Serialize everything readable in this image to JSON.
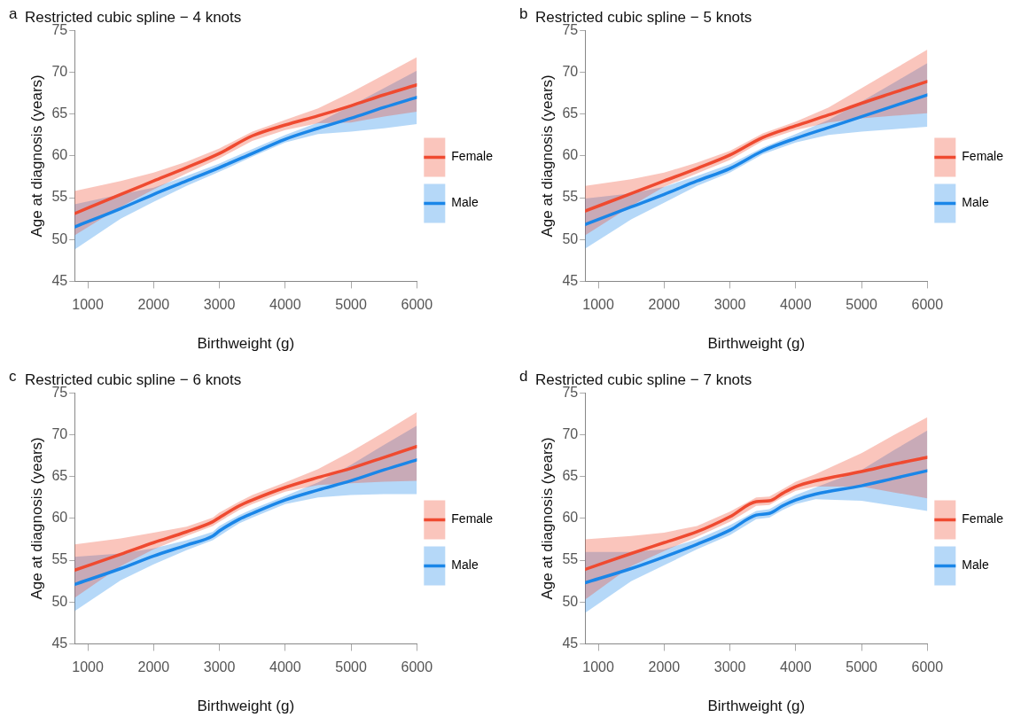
{
  "chart_data": [
    {
      "type": "line",
      "title": "Restricted cubic spline − 4 knots",
      "annotations": [
        "a"
      ],
      "xlabel": "Birthweight (g)",
      "ylabel": "Age at diagnosis (years)",
      "x": [
        800,
        1500,
        2000,
        2500,
        3000,
        3500,
        4000,
        4500,
        5000,
        5500,
        6000
      ],
      "xlim": [
        800,
        6000
      ],
      "xticks": [
        1000,
        2000,
        3000,
        4000,
        5000,
        6000
      ],
      "ylim": [
        45,
        75
      ],
      "yticks": [
        45,
        50,
        55,
        60,
        65,
        70,
        75
      ],
      "grid": false,
      "legend": "right",
      "series": [
        {
          "name": "Female",
          "color": "#ef4a30",
          "values": [
            53.1,
            55.4,
            57.0,
            58.6,
            60.3,
            62.4,
            63.7,
            64.8,
            66.0,
            67.3,
            68.5
          ],
          "lower": [
            50.5,
            53.9,
            56.0,
            57.9,
            59.7,
            61.8,
            63.1,
            63.9,
            64.0,
            64.7,
            65.3
          ],
          "upper": [
            55.8,
            57.0,
            58.0,
            59.3,
            60.9,
            62.9,
            64.3,
            65.7,
            67.6,
            69.7,
            71.8
          ]
        },
        {
          "name": "Male",
          "color": "#1a86e8",
          "values": [
            51.5,
            53.7,
            55.4,
            57.0,
            58.6,
            60.3,
            62.0,
            63.3,
            64.5,
            65.8,
            67.0
          ],
          "lower": [
            48.8,
            52.5,
            54.5,
            56.4,
            58.1,
            59.9,
            61.6,
            62.6,
            62.9,
            63.3,
            63.8
          ],
          "upper": [
            54.2,
            55.4,
            56.2,
            57.6,
            59.1,
            60.8,
            62.5,
            64.0,
            66.0,
            68.1,
            70.2
          ]
        }
      ]
    },
    {
      "type": "line",
      "title": "Restricted cubic spline − 5 knots",
      "annotations": [
        "b"
      ],
      "xlabel": "Birthweight (g)",
      "ylabel": "Age at diagnosis (years)",
      "x": [
        800,
        1500,
        2000,
        2500,
        3000,
        3500,
        4000,
        4500,
        5000,
        5500,
        6000
      ],
      "xlim": [
        800,
        6000
      ],
      "xticks": [
        1000,
        2000,
        3000,
        4000,
        5000,
        6000
      ],
      "ylim": [
        45,
        75
      ],
      "yticks": [
        45,
        50,
        55,
        60,
        65,
        70,
        75
      ],
      "grid": false,
      "legend": "right",
      "series": [
        {
          "name": "Female",
          "color": "#ef4a30",
          "values": [
            53.4,
            55.5,
            57.0,
            58.5,
            60.1,
            62.2,
            63.6,
            64.9,
            66.3,
            67.6,
            68.9
          ],
          "lower": [
            50.5,
            54.0,
            56.3,
            57.9,
            59.5,
            61.8,
            63.1,
            64.0,
            64.5,
            64.8,
            65.1
          ],
          "upper": [
            56.4,
            57.2,
            58.0,
            59.2,
            60.6,
            62.7,
            64.1,
            65.8,
            68.1,
            70.4,
            72.7
          ]
        },
        {
          "name": "Male",
          "color": "#1a86e8",
          "values": [
            51.8,
            53.9,
            55.4,
            57.0,
            58.5,
            60.6,
            62.1,
            63.4,
            64.7,
            66.0,
            67.3
          ],
          "lower": [
            48.9,
            52.4,
            54.4,
            56.4,
            58.0,
            60.2,
            61.6,
            62.5,
            62.9,
            63.2,
            63.5
          ],
          "upper": [
            54.9,
            55.5,
            56.3,
            57.6,
            59.0,
            61.0,
            62.6,
            64.3,
            66.5,
            68.8,
            71.1
          ]
        }
      ]
    },
    {
      "type": "line",
      "title": "Restricted cubic spline − 6 knots",
      "annotations": [
        "c"
      ],
      "xlabel": "Birthweight (g)",
      "ylabel": "Age at diagnosis (years)",
      "x": [
        800,
        1500,
        2000,
        2500,
        2900,
        3000,
        3300,
        3500,
        4000,
        4500,
        5000,
        5500,
        6000
      ],
      "xlim": [
        800,
        6000
      ],
      "xticks": [
        1000,
        2000,
        3000,
        4000,
        5000,
        6000
      ],
      "ylim": [
        45,
        75
      ],
      "yticks": [
        45,
        50,
        55,
        60,
        65,
        70,
        75
      ],
      "grid": false,
      "legend": "right",
      "series": [
        {
          "name": "Female",
          "color": "#ef4a30",
          "values": [
            53.8,
            55.7,
            57.1,
            58.4,
            59.6,
            60.1,
            61.5,
            62.2,
            63.7,
            64.9,
            66.0,
            67.3,
            68.6
          ],
          "lower": [
            50.5,
            54.3,
            56.3,
            57.9,
            59.1,
            59.6,
            61.0,
            61.7,
            63.2,
            64.0,
            64.2,
            64.4,
            64.5
          ],
          "upper": [
            56.9,
            57.6,
            58.3,
            59.0,
            60.1,
            60.7,
            62.0,
            62.8,
            64.3,
            65.9,
            68.0,
            70.3,
            72.7
          ]
        },
        {
          "name": "Male",
          "color": "#1a86e8",
          "values": [
            52.1,
            54.0,
            55.5,
            56.8,
            57.9,
            58.5,
            59.9,
            60.6,
            62.2,
            63.4,
            64.5,
            65.8,
            67.0
          ],
          "lower": [
            48.9,
            52.6,
            54.5,
            56.2,
            57.4,
            57.9,
            59.4,
            60.1,
            61.7,
            62.5,
            62.8,
            62.9,
            62.9
          ],
          "upper": [
            55.4,
            55.8,
            56.4,
            57.4,
            58.4,
            59.1,
            60.4,
            61.1,
            62.7,
            64.3,
            66.4,
            68.8,
            71.1
          ]
        }
      ]
    },
    {
      "type": "line",
      "title": "Restricted cubic spline − 7 knots",
      "annotations": [
        "d"
      ],
      "xlabel": "Birthweight (g)",
      "ylabel": "Age at diagnosis (years)",
      "x": [
        800,
        1500,
        2000,
        2500,
        3000,
        3400,
        3600,
        3800,
        4000,
        4300,
        5000,
        5500,
        6000
      ],
      "xlim": [
        800,
        6000
      ],
      "xticks": [
        1000,
        2000,
        3000,
        4000,
        5000,
        6000
      ],
      "ylim": [
        45,
        75
      ],
      "yticks": [
        45,
        50,
        55,
        60,
        65,
        70,
        75
      ],
      "grid": false,
      "legend": "right",
      "series": [
        {
          "name": "Female",
          "color": "#ef4a30",
          "values": [
            53.9,
            55.8,
            57.1,
            58.4,
            60.2,
            62.0,
            62.1,
            63.0,
            63.8,
            64.5,
            65.6,
            66.5,
            67.3
          ],
          "lower": [
            50.3,
            54.3,
            56.1,
            57.8,
            59.6,
            61.5,
            61.6,
            62.5,
            63.3,
            63.8,
            63.8,
            63.1,
            62.4
          ],
          "upper": [
            57.5,
            57.9,
            58.3,
            59.1,
            60.8,
            62.5,
            62.6,
            63.5,
            64.4,
            65.3,
            67.8,
            70.0,
            72.1
          ]
        },
        {
          "name": "Male",
          "color": "#1a86e8",
          "values": [
            52.3,
            54.0,
            55.4,
            56.9,
            58.6,
            60.4,
            60.6,
            61.5,
            62.2,
            62.9,
            63.9,
            64.8,
            65.7
          ],
          "lower": [
            48.7,
            52.5,
            54.4,
            56.3,
            58.0,
            59.9,
            60.1,
            61.0,
            61.7,
            62.3,
            62.1,
            61.5,
            60.9
          ],
          "upper": [
            56.0,
            56.0,
            56.3,
            57.5,
            59.2,
            60.9,
            61.1,
            62.0,
            62.8,
            63.7,
            65.8,
            68.2,
            70.5
          ]
        }
      ]
    }
  ]
}
